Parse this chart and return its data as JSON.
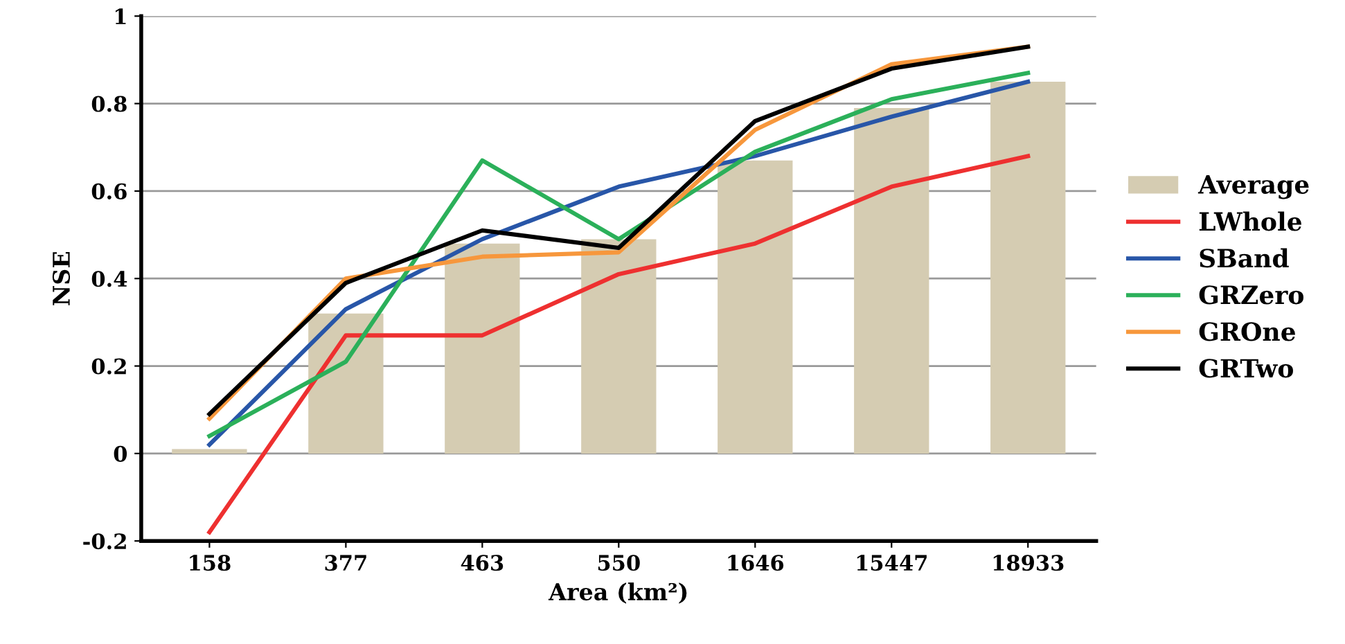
{
  "chart_data": {
    "type": "bar",
    "xlabel": "Area (km²)",
    "ylabel": "NSE",
    "categories": [
      "158",
      "377",
      "463",
      "550",
      "1646",
      "15447",
      "18933"
    ],
    "series": [
      {
        "name": "Average",
        "color": "#d5ccb2",
        "values": [
          0.01,
          0.32,
          0.48,
          0.49,
          0.67,
          0.79,
          0.85
        ]
      },
      {
        "name": "LWhole",
        "type": "line",
        "color": "#ee3030",
        "values": [
          -0.18,
          0.27,
          0.27,
          0.41,
          0.48,
          0.61,
          0.68
        ]
      },
      {
        "name": "SBand",
        "type": "line",
        "color": "#2856a8",
        "values": [
          0.02,
          0.33,
          0.49,
          0.61,
          0.68,
          0.77,
          0.85
        ]
      },
      {
        "name": "GRZero",
        "type": "line",
        "color": "#2bb05a",
        "values": [
          0.04,
          0.21,
          0.67,
          0.49,
          0.69,
          0.81,
          0.87
        ]
      },
      {
        "name": "GROne",
        "type": "line",
        "color": "#f7973c",
        "values": [
          0.08,
          0.4,
          0.45,
          0.46,
          0.74,
          0.89,
          0.93
        ]
      },
      {
        "name": "GRTwo",
        "type": "line",
        "color": "#000000",
        "values": [
          0.09,
          0.39,
          0.51,
          0.47,
          0.76,
          0.88,
          0.93
        ]
      }
    ],
    "ylim": [
      -0.2,
      1
    ],
    "yticks": [
      -0.2,
      0,
      0.2,
      0.4,
      0.6,
      0.8,
      1
    ],
    "grid": "y",
    "legend": "right",
    "line_style": "solid",
    "marker": "none"
  }
}
